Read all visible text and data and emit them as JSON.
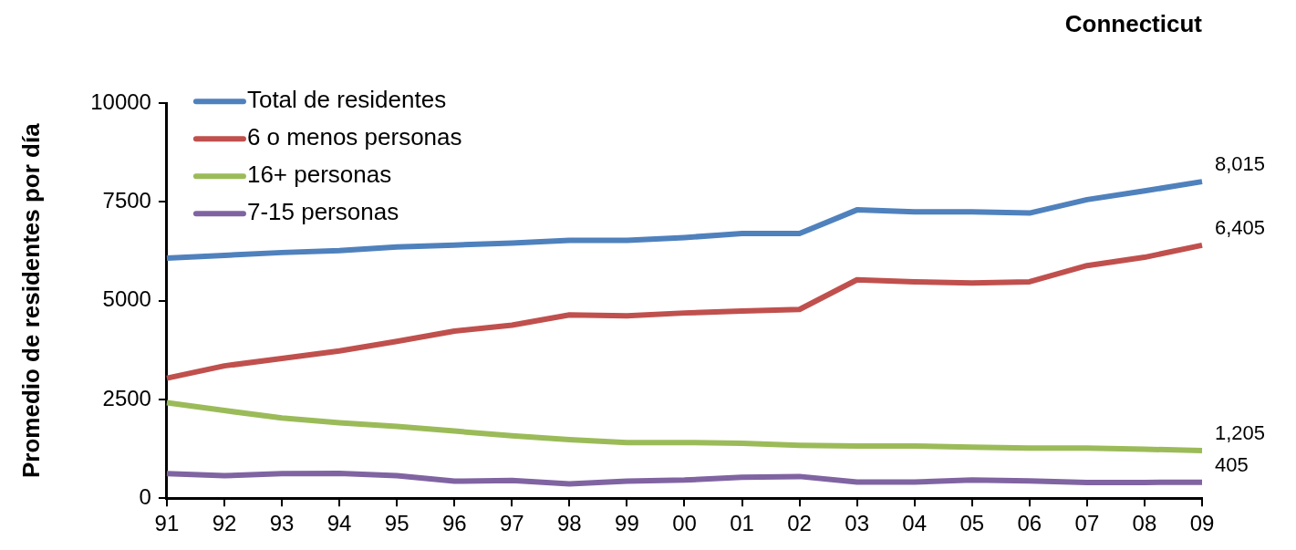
{
  "chart_data": {
    "type": "line",
    "title": "Connecticut",
    "ylabel": "Promedio de residentes por día",
    "categories": [
      "91",
      "92",
      "93",
      "94",
      "95",
      "96",
      "97",
      "98",
      "99",
      "00",
      "01",
      "02",
      "03",
      "04",
      "05",
      "06",
      "07",
      "08",
      "09"
    ],
    "ylim": [
      0,
      10000
    ],
    "yticks": [
      0,
      2500,
      5000,
      7500,
      10000
    ],
    "grid": false,
    "legend": "top left",
    "marker": "none",
    "line_style": "solid",
    "series": [
      {
        "name": "Total de residentes",
        "color": "#4f81bd",
        "values": [
          6080,
          6150,
          6220,
          6270,
          6360,
          6410,
          6460,
          6530,
          6530,
          6600,
          6700,
          6700,
          7300,
          7250,
          7250,
          7220,
          7560,
          7780,
          8015
        ],
        "value_labels": [
          null,
          null,
          null,
          null,
          null,
          null,
          null,
          null,
          null,
          null,
          null,
          null,
          null,
          null,
          null,
          null,
          null,
          null,
          "8,015"
        ]
      },
      {
        "name": "6 o menos personas",
        "color": "#c0504d",
        "values": [
          3040,
          3350,
          3540,
          3730,
          3970,
          4230,
          4380,
          4640,
          4620,
          4690,
          4740,
          4780,
          5530,
          5480,
          5450,
          5480,
          5890,
          6100,
          6405
        ],
        "value_labels": [
          null,
          null,
          null,
          null,
          null,
          null,
          null,
          null,
          null,
          null,
          null,
          null,
          null,
          null,
          null,
          null,
          null,
          null,
          "6,405"
        ]
      },
      {
        "name": "16+ personas",
        "color": "#9bbb59",
        "values": [
          2420,
          2220,
          2030,
          1910,
          1820,
          1700,
          1580,
          1480,
          1410,
          1410,
          1390,
          1340,
          1320,
          1320,
          1290,
          1270,
          1270,
          1240,
          1205
        ],
        "value_labels": [
          null,
          null,
          null,
          null,
          null,
          null,
          null,
          null,
          null,
          null,
          null,
          null,
          null,
          null,
          null,
          null,
          null,
          null,
          "1,205"
        ]
      },
      {
        "name": "7-15 personas",
        "color": "#8064a2",
        "values": [
          620,
          570,
          620,
          630,
          570,
          430,
          450,
          360,
          430,
          460,
          530,
          550,
          410,
          410,
          460,
          440,
          400,
          400,
          405
        ],
        "value_labels": [
          null,
          null,
          null,
          null,
          null,
          null,
          null,
          null,
          null,
          null,
          null,
          null,
          null,
          null,
          null,
          null,
          null,
          null,
          "405"
        ]
      }
    ]
  }
}
